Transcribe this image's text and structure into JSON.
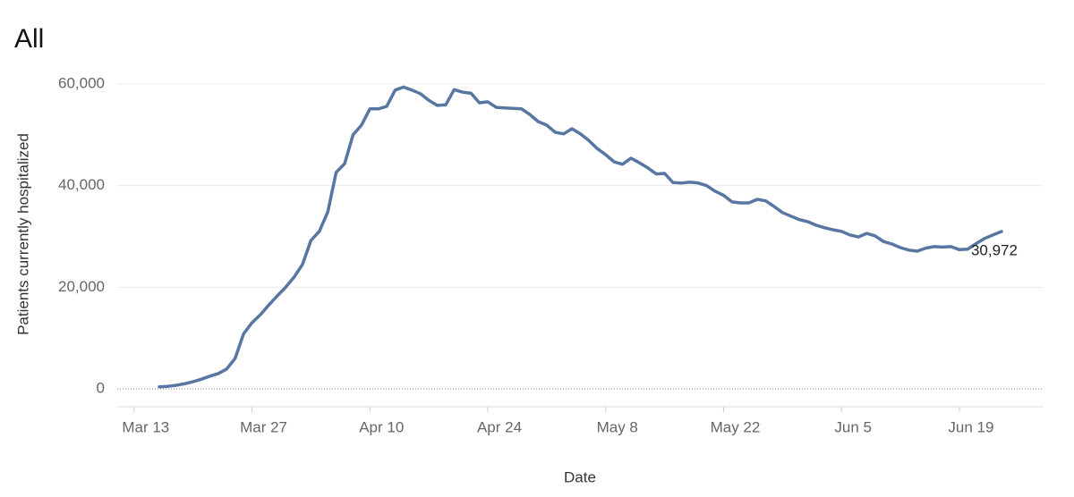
{
  "chart_data": {
    "type": "line",
    "title": "All",
    "x_label": "Date",
    "y_label": "Patients currently hospitalized",
    "x": [
      "Mar 16",
      "Mar 17",
      "Mar 18",
      "Mar 19",
      "Mar 20",
      "Mar 21",
      "Mar 22",
      "Mar 23",
      "Mar 24",
      "Mar 25",
      "Mar 26",
      "Mar 27",
      "Mar 28",
      "Mar 29",
      "Mar 30",
      "Mar 31",
      "Apr 1",
      "Apr 2",
      "Apr 3",
      "Apr 4",
      "Apr 5",
      "Apr 6",
      "Apr 7",
      "Apr 8",
      "Apr 9",
      "Apr 10",
      "Apr 11",
      "Apr 12",
      "Apr 13",
      "Apr 14",
      "Apr 15",
      "Apr 16",
      "Apr 17",
      "Apr 18",
      "Apr 19",
      "Apr 20",
      "Apr 21",
      "Apr 22",
      "Apr 23",
      "Apr 24",
      "Apr 25",
      "Apr 26",
      "Apr 27",
      "Apr 28",
      "Apr 29",
      "Apr 30",
      "May 1",
      "May 2",
      "May 3",
      "May 4",
      "May 5",
      "May 6",
      "May 7",
      "May 8",
      "May 9",
      "May 10",
      "May 11",
      "May 12",
      "May 13",
      "May 14",
      "May 15",
      "May 16",
      "May 17",
      "May 18",
      "May 19",
      "May 20",
      "May 21",
      "May 22",
      "May 23",
      "May 24",
      "May 25",
      "May 26",
      "May 27",
      "May 28",
      "May 29",
      "May 30",
      "May 31",
      "Jun 1",
      "Jun 2",
      "Jun 3",
      "Jun 4",
      "Jun 5",
      "Jun 6",
      "Jun 7",
      "Jun 8",
      "Jun 9",
      "Jun 10",
      "Jun 11",
      "Jun 12",
      "Jun 13",
      "Jun 14",
      "Jun 15",
      "Jun 16",
      "Jun 17",
      "Jun 18",
      "Jun 19",
      "Jun 20",
      "Jun 21",
      "Jun 22",
      "Jun 23",
      "Jun 24"
    ],
    "series": [
      {
        "name": "All",
        "color": "#5876a3",
        "values": [
          400,
          500,
          700,
          1000,
          1400,
          1900,
          2500,
          3000,
          3900,
          6000,
          10800,
          13000,
          14600,
          16500,
          18300,
          20000,
          22000,
          24500,
          29200,
          31000,
          34800,
          42600,
          44300,
          50000,
          51900,
          55100,
          55100,
          55600,
          58800,
          59400,
          58800,
          58100,
          56800,
          55800,
          55900,
          58900,
          58400,
          58200,
          56300,
          56500,
          55400,
          55300,
          55200,
          55100,
          54000,
          52600,
          51900,
          50500,
          50200,
          51200,
          50200,
          48900,
          47300,
          46100,
          44700,
          44200,
          45400,
          44500,
          43500,
          42300,
          42400,
          40600,
          40500,
          40700,
          40500,
          40000,
          38900,
          38100,
          36800,
          36600,
          36600,
          37300,
          37000,
          35900,
          34700,
          34000,
          33300,
          32900,
          32200,
          31700,
          31300,
          31000,
          30300,
          29900,
          30600,
          30100,
          29000,
          28500,
          27800,
          27300,
          27100,
          27700,
          28000,
          27900,
          28000,
          27400,
          27500,
          28600,
          29600,
          30300,
          30972
        ],
        "value_labels": [
          null,
          null,
          null,
          null,
          null,
          null,
          null,
          null,
          null,
          null,
          null,
          null,
          null,
          null,
          null,
          null,
          null,
          null,
          null,
          null,
          null,
          null,
          null,
          null,
          null,
          null,
          null,
          null,
          null,
          null,
          null,
          null,
          null,
          null,
          null,
          null,
          null,
          null,
          null,
          null,
          null,
          null,
          null,
          null,
          null,
          null,
          null,
          null,
          null,
          null,
          null,
          null,
          null,
          null,
          null,
          null,
          null,
          null,
          null,
          null,
          null,
          null,
          null,
          null,
          null,
          null,
          null,
          null,
          null,
          null,
          null,
          null,
          null,
          null,
          null,
          null,
          null,
          null,
          null,
          null,
          null,
          null,
          null,
          null,
          null,
          null,
          null,
          null,
          null,
          null,
          null,
          null,
          null,
          null,
          null,
          null,
          null,
          null,
          null,
          null,
          "30,972"
        ]
      }
    ],
    "xlim": [
      "Mar 11",
      "Jun 29"
    ],
    "xticks": [
      "Mar 13",
      "Mar 27",
      "Apr 10",
      "Apr 24",
      "May 8",
      "May 22",
      "Jun 5",
      "Jun 19"
    ],
    "ylim": [
      0,
      60000
    ],
    "yticks": [
      0,
      {
        "value": 20000,
        "label": "20,000"
      },
      {
        "value": 40000,
        "label": "40,000"
      },
      {
        "value": 60000,
        "label": "60,000"
      }
    ],
    "grid": true
  }
}
